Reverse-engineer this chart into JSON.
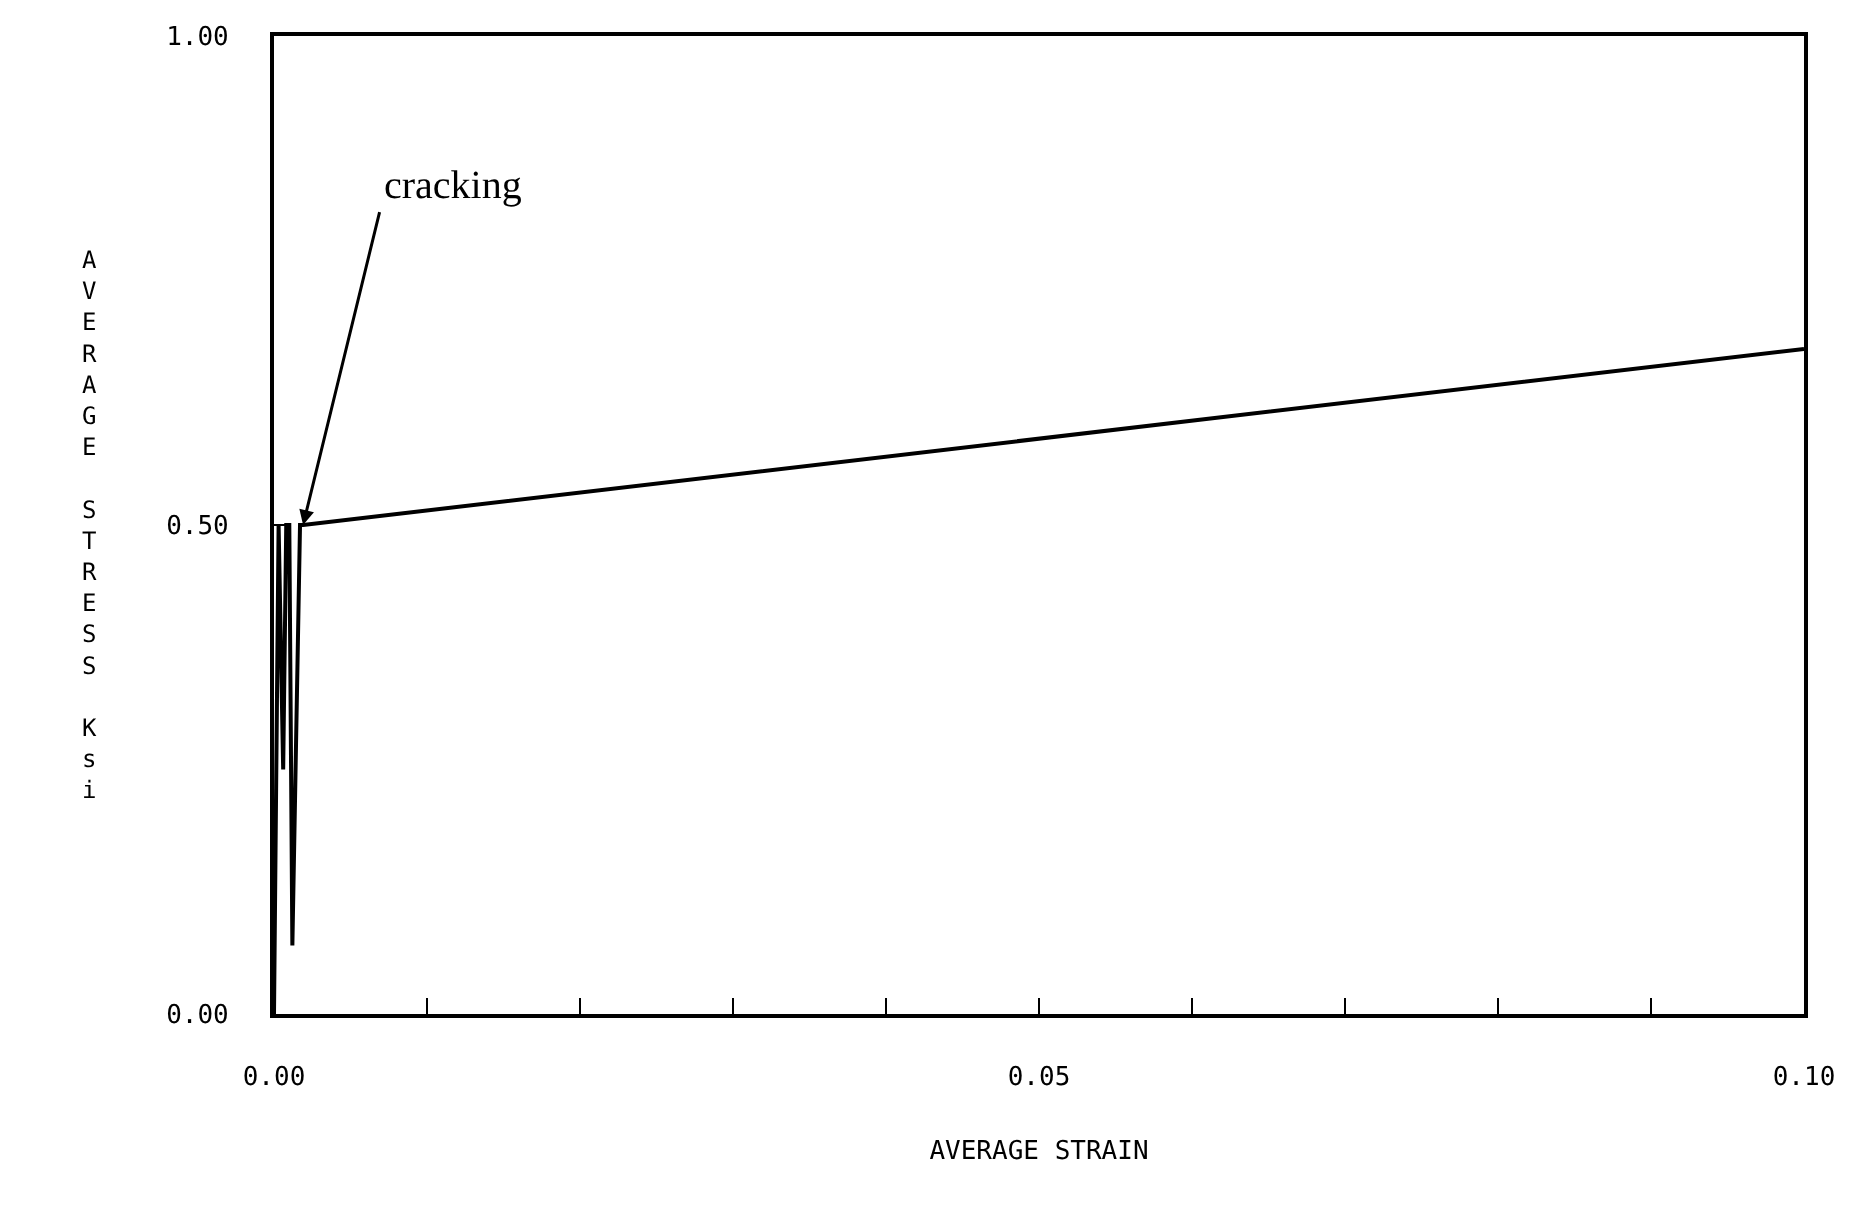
{
  "chart_data": {
    "type": "line",
    "xlabel": "AVERAGE STRAIN",
    "ylabel": "AVERAGE STRESS Ksi",
    "x": [
      0,
      0.0003,
      0.0006,
      0.0008,
      0.001,
      0.0012,
      0.0017,
      0.0019,
      0.1
    ],
    "series": [
      {
        "color": "#000000",
        "values": [
          0,
          0.5,
          0.25,
          0.5,
          0.5,
          0.07,
          0.5,
          0.5,
          0.68
        ]
      }
    ],
    "xlim": [
      0,
      0.1
    ],
    "ylim": [
      0,
      1
    ],
    "xticks": [
      {
        "value": 0,
        "label": "0.00"
      },
      {
        "value": 0.01,
        "label": null
      },
      {
        "value": 0.02,
        "label": null
      },
      {
        "value": 0.03,
        "label": null
      },
      {
        "value": 0.04,
        "label": null
      },
      {
        "value": 0.05,
        "label": "0.05"
      },
      {
        "value": 0.06,
        "label": null
      },
      {
        "value": 0.07,
        "label": null
      },
      {
        "value": 0.08,
        "label": null
      },
      {
        "value": 0.09,
        "label": null
      },
      {
        "value": 0.1,
        "label": "0.10"
      }
    ],
    "yticks": [
      {
        "value": 0,
        "label": "0.00"
      },
      {
        "value": 0.5,
        "label": "0.50"
      },
      {
        "value": 1,
        "label": "1.00"
      }
    ],
    "annotations": [
      {
        "text": "cracking",
        "x": 0.0019,
        "y": 0.5
      }
    ],
    "marker": "none",
    "line_style": "solid"
  }
}
